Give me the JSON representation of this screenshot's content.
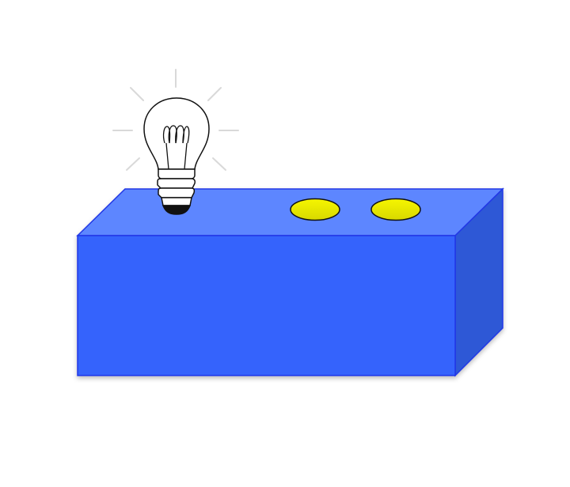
{
  "scene": {
    "box": {
      "front_color": "#3464fc",
      "top_color": "#5d86ff",
      "side_color": "#2d58d6",
      "edge_color": "#2237e6"
    },
    "buttons": {
      "count": 2,
      "color_light": "#f6f600",
      "color_dark": "#d8d800",
      "outline": "#111111"
    },
    "bulb": {
      "state": "unlit",
      "glass_color": "#ffffff",
      "outline": "#111111",
      "ray_color": "#d9d9d9"
    }
  }
}
